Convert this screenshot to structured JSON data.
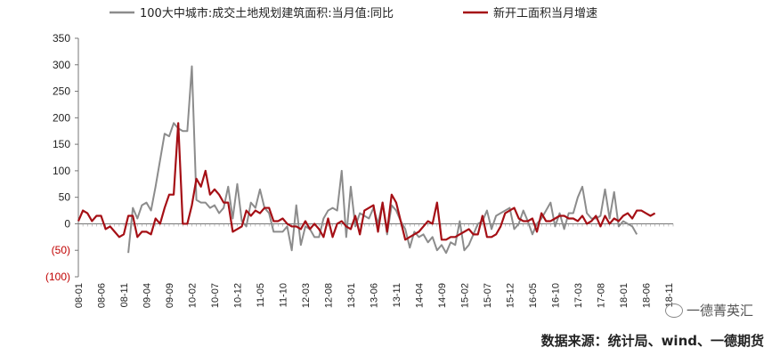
{
  "chart_data": {
    "type": "line",
    "y_axis": {
      "ylim": [
        -100,
        350
      ],
      "ticks": [
        350,
        300,
        250,
        200,
        150,
        100,
        50,
        0,
        -50,
        -100
      ],
      "tick_labels": [
        "350",
        "300",
        "250",
        "200",
        "150",
        "100",
        "50",
        "0",
        "(50)",
        "(100)"
      ]
    },
    "x_tick_labels": [
      "08-01",
      "08-06",
      "08-11",
      "09-04",
      "09-09",
      "10-02",
      "10-07",
      "10-12",
      "11-05",
      "11-10",
      "12-03",
      "12-08",
      "13-01",
      "13-06",
      "13-11",
      "14-04",
      "14-09",
      "15-02",
      "15-07",
      "15-12",
      "16-05",
      "16-10",
      "17-03",
      "17-08",
      "18-01",
      "18-06",
      "18-11"
    ],
    "x_tick_months": [
      0,
      5,
      10,
      15,
      20,
      25,
      30,
      35,
      40,
      45,
      50,
      55,
      60,
      65,
      70,
      75,
      80,
      85,
      90,
      95,
      100,
      105,
      110,
      115,
      120,
      125,
      130
    ],
    "series": [
      {
        "name": "100大中城市:成交土地规划建筑面积:当月值:同比",
        "color": "#8c8c8c",
        "start_month": 11,
        "values": [
          -55,
          30,
          10,
          35,
          40,
          25,
          70,
          120,
          170,
          165,
          190,
          180,
          175,
          175,
          297,
          45,
          40,
          40,
          30,
          35,
          20,
          30,
          70,
          10,
          75,
          5,
          -5,
          40,
          30,
          65,
          30,
          20,
          -15,
          -15,
          -15,
          -5,
          -50,
          35,
          -40,
          -5,
          -10,
          -25,
          -25,
          10,
          25,
          30,
          25,
          100,
          -25,
          70,
          -5,
          20,
          15,
          10,
          30,
          0,
          40,
          -20,
          35,
          25,
          5,
          -10,
          -45,
          -15,
          -25,
          -20,
          -35,
          -25,
          -50,
          -40,
          -55,
          -35,
          -40,
          5,
          -50,
          -40,
          -20,
          0,
          5,
          25,
          -10,
          15,
          20,
          25,
          30,
          -10,
          0,
          25,
          5,
          -20,
          0,
          10,
          25,
          40,
          -5,
          20,
          -10,
          20,
          20,
          50,
          70,
          20,
          10,
          10,
          15,
          65,
          10,
          60,
          -5,
          5,
          0,
          -5,
          -20
        ]
      },
      {
        "name": "新开工面积当月增速",
        "color": "#a50f15",
        "start_month": 0,
        "values": [
          5,
          25,
          20,
          5,
          15,
          15,
          -10,
          -5,
          -15,
          -25,
          -20,
          15,
          15,
          -25,
          -15,
          -15,
          -20,
          10,
          0,
          30,
          55,
          55,
          190,
          0,
          0,
          35,
          85,
          70,
          100,
          55,
          65,
          55,
          40,
          40,
          -15,
          -10,
          -5,
          25,
          15,
          25,
          20,
          30,
          30,
          5,
          5,
          10,
          0,
          -5,
          -5,
          -10,
          5,
          -10,
          0,
          -10,
          -25,
          10,
          -25,
          0,
          5,
          -5,
          -10,
          15,
          -20,
          25,
          30,
          35,
          -15,
          40,
          -15,
          55,
          40,
          5,
          -30,
          -25,
          -20,
          -15,
          -5,
          5,
          0,
          40,
          -30,
          -30,
          -25,
          -25,
          -20,
          -15,
          -10,
          -20,
          -20,
          15,
          -25,
          -25,
          -20,
          -5,
          20,
          25,
          30,
          10,
          5,
          5,
          10,
          -15,
          20,
          5,
          5,
          10,
          15,
          15,
          10,
          10,
          5,
          15,
          0,
          5,
          15,
          -5,
          15,
          0,
          10,
          5,
          15,
          20,
          10,
          25,
          25,
          20,
          15,
          20
        ]
      }
    ]
  },
  "watermark": {
    "text": "一德菁英汇",
    "icon": "wechat-icon"
  },
  "source": "数据来源：统计局、wind、一德期货"
}
